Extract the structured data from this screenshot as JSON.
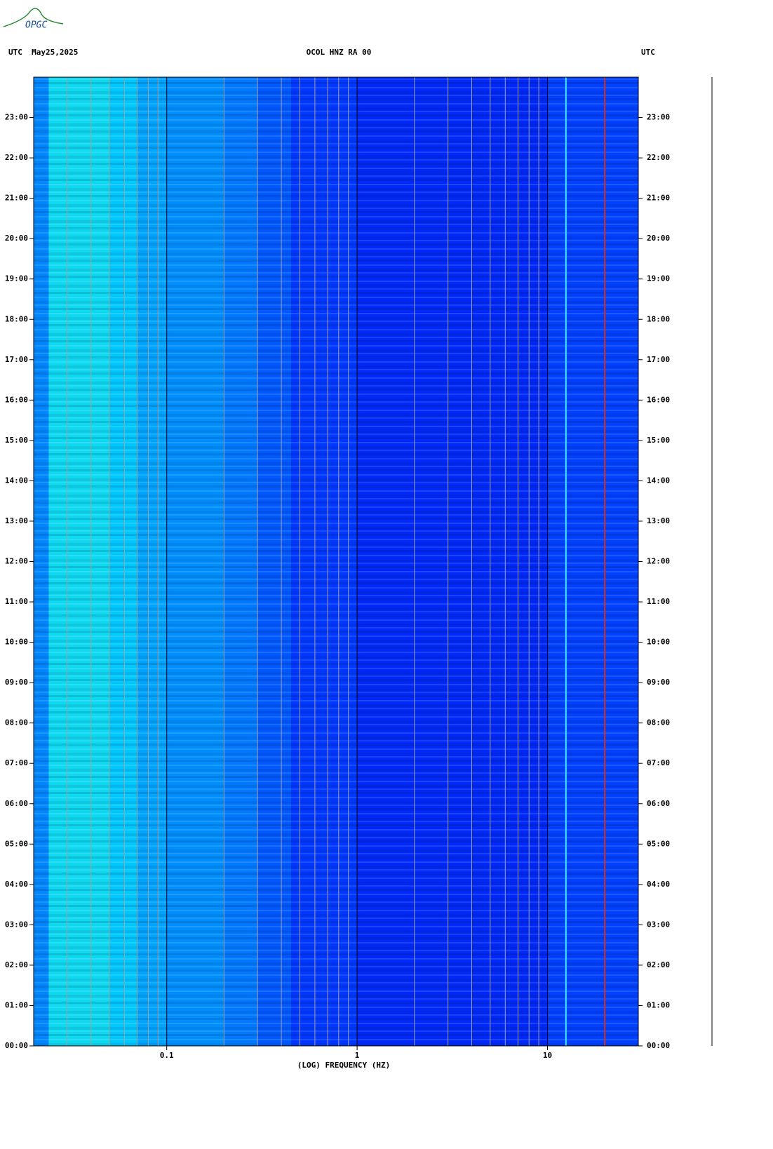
{
  "logo": "OPGC",
  "chart_data": {
    "type": "spectrogram",
    "title": "OCOL HNZ RA 00",
    "left_header": "UTC  May25,2025",
    "right_header": "UTC",
    "xlabel": "(LOG) FREQUENCY (HZ)",
    "xscale": "log",
    "xlim": [
      0.02,
      30
    ],
    "xticks": [
      0.1,
      1,
      10
    ],
    "xgrid": [
      0.03,
      0.04,
      0.05,
      0.06,
      0.07,
      0.08,
      0.09,
      0.1,
      0.2,
      0.3,
      0.4,
      0.5,
      0.6,
      0.7,
      0.8,
      0.9,
      1,
      2,
      3,
      4,
      5,
      6,
      7,
      8,
      9,
      10,
      20
    ],
    "ylim": [
      0,
      24
    ],
    "yticks": [
      {
        "value": 0,
        "label": "00:00"
      },
      {
        "value": 1,
        "label": "01:00"
      },
      {
        "value": 2,
        "label": "02:00"
      },
      {
        "value": 3,
        "label": "03:00"
      },
      {
        "value": 4,
        "label": "04:00"
      },
      {
        "value": 5,
        "label": "05:00"
      },
      {
        "value": 6,
        "label": "06:00"
      },
      {
        "value": 7,
        "label": "07:00"
      },
      {
        "value": 8,
        "label": "08:00"
      },
      {
        "value": 9,
        "label": "09:00"
      },
      {
        "value": 10,
        "label": "10:00"
      },
      {
        "value": 11,
        "label": "11:00"
      },
      {
        "value": 12,
        "label": "12:00"
      },
      {
        "value": 13,
        "label": "13:00"
      },
      {
        "value": 14,
        "label": "14:00"
      },
      {
        "value": 15,
        "label": "15:00"
      },
      {
        "value": 16,
        "label": "16:00"
      },
      {
        "value": 17,
        "label": "17:00"
      },
      {
        "value": 18,
        "label": "18:00"
      },
      {
        "value": 19,
        "label": "19:00"
      },
      {
        "value": 20,
        "label": "20:00"
      },
      {
        "value": 21,
        "label": "21:00"
      },
      {
        "value": 22,
        "label": "22:00"
      },
      {
        "value": 23,
        "label": "23:00"
      }
    ],
    "bands": [
      0.02,
      0.024,
      0.05,
      0.07,
      0.1,
      0.2,
      0.3,
      0.45,
      1,
      10,
      30
    ],
    "levels": [
      0.42,
      0.66,
      0.6,
      0.5,
      0.44,
      0.38,
      0.3,
      0.22,
      0.17,
      0.24
    ],
    "colormap": [
      "#0000c8",
      "#0030ff",
      "#0080ff",
      "#00c8ff",
      "#30ffd0",
      "#c0ff40"
    ],
    "lines": [
      {
        "frequency": 12.5,
        "color": "#40e8ff"
      },
      {
        "frequency": 20,
        "color": "#d83020"
      }
    ]
  }
}
